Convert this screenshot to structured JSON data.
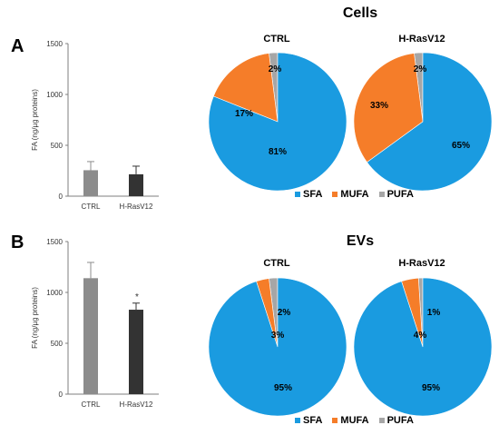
{
  "panel_labels": {
    "a": "A",
    "b": "B"
  },
  "colors": {
    "SFA": "#1a9be0",
    "MUFA": "#f57d29",
    "PUFA": "#a6a6a6"
  },
  "legend": [
    "SFA",
    "MUFA",
    "PUFA"
  ],
  "chart_data": [
    {
      "type": "bar",
      "panel": "A",
      "categories": [
        "CTRL",
        "H-RasV12"
      ],
      "values": [
        255,
        215
      ],
      "errors": [
        85,
        80
      ],
      "bar_colors": [
        "#8c8c8c",
        "#333333"
      ],
      "ylabel": "FA (ng/µg proteins)",
      "ylim": [
        0,
        1500
      ],
      "yticks": [
        0,
        500,
        1000,
        1500
      ],
      "annotations": []
    },
    {
      "type": "pie",
      "group": "Cells",
      "title": "CTRL",
      "slices": [
        {
          "label": "SFA",
          "value": 81,
          "text": "81%"
        },
        {
          "label": "MUFA",
          "value": 17,
          "text": "17%"
        },
        {
          "label": "PUFA",
          "value": 2,
          "text": "2%"
        }
      ]
    },
    {
      "type": "pie",
      "group": "Cells",
      "title": "H-RasV12",
      "slices": [
        {
          "label": "SFA",
          "value": 65,
          "text": "65%"
        },
        {
          "label": "MUFA",
          "value": 33,
          "text": "33%"
        },
        {
          "label": "PUFA",
          "value": 2,
          "text": "2%"
        }
      ]
    },
    {
      "type": "bar",
      "panel": "B",
      "categories": [
        "CTRL",
        "H-RasV12"
      ],
      "values": [
        1140,
        830
      ],
      "errors": [
        155,
        65
      ],
      "bar_colors": [
        "#8c8c8c",
        "#333333"
      ],
      "ylabel": "FA (ng/µg proteins)",
      "ylim": [
        0,
        1500
      ],
      "yticks": [
        0,
        500,
        1000,
        1500
      ],
      "annotations": [
        "",
        "*"
      ]
    },
    {
      "type": "pie",
      "group": "EVs",
      "title": "CTRL",
      "slices": [
        {
          "label": "SFA",
          "value": 95,
          "text": "95%"
        },
        {
          "label": "MUFA",
          "value": 3,
          "text": "3%"
        },
        {
          "label": "PUFA",
          "value": 2,
          "text": "2%"
        }
      ]
    },
    {
      "type": "pie",
      "group": "EVs",
      "title": "H-RasV12",
      "slices": [
        {
          "label": "SFA",
          "value": 95,
          "text": "95%"
        },
        {
          "label": "MUFA",
          "value": 4,
          "text": "4%"
        },
        {
          "label": "PUFA",
          "value": 1,
          "text": "1%"
        }
      ]
    }
  ],
  "sections": {
    "cells": "Cells",
    "evs": "EVs"
  }
}
